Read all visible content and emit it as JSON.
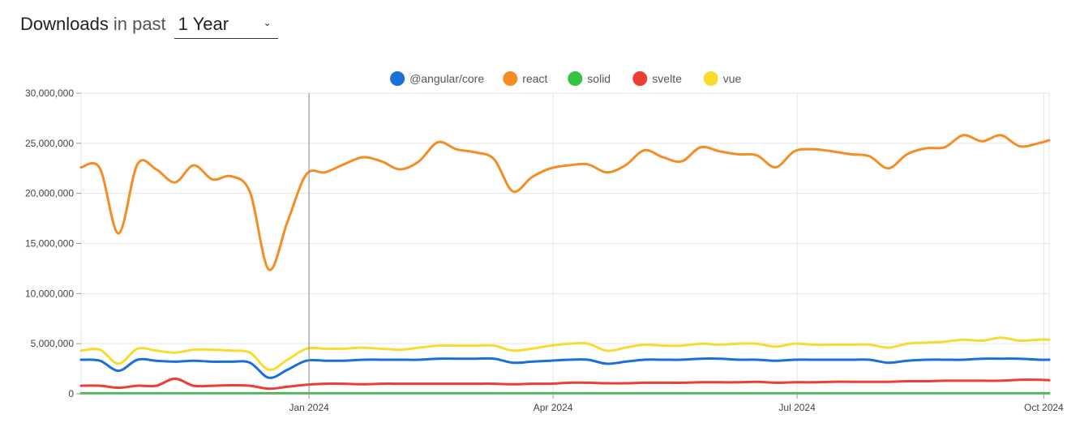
{
  "header": {
    "title_strong": "Downloads",
    "title_light": "in past",
    "range_selected": "1 Year",
    "caret": "⌄"
  },
  "chart_data": {
    "type": "line",
    "x_tick_labels": [
      "Jan 2024",
      "Apr 2024",
      "Jul 2024",
      "Oct 2024"
    ],
    "x_tick_dates": [
      "2024-01-01",
      "2024-04-01",
      "2024-07-01",
      "2024-10-01"
    ],
    "x_range": [
      "2023-10-08",
      "2024-10-03"
    ],
    "y_tick_labels": [
      "0",
      "5,000,000",
      "10,000,000",
      "15,000,000",
      "20,000,000",
      "25,000,000",
      "30,000,000"
    ],
    "ylim": [
      0,
      30000000
    ],
    "grid": true,
    "legend_position": "top-center",
    "x": [
      "2023-10-08",
      "2023-10-15",
      "2023-10-22",
      "2023-10-29",
      "2023-11-05",
      "2023-11-12",
      "2023-11-19",
      "2023-11-26",
      "2023-12-03",
      "2023-12-10",
      "2023-12-17",
      "2023-12-24",
      "2023-12-31",
      "2024-01-07",
      "2024-01-14",
      "2024-01-21",
      "2024-01-28",
      "2024-02-04",
      "2024-02-11",
      "2024-02-18",
      "2024-02-25",
      "2024-03-03",
      "2024-03-10",
      "2024-03-17",
      "2024-03-24",
      "2024-03-31",
      "2024-04-07",
      "2024-04-14",
      "2024-04-21",
      "2024-04-28",
      "2024-05-05",
      "2024-05-12",
      "2024-05-19",
      "2024-05-26",
      "2024-06-02",
      "2024-06-09",
      "2024-06-16",
      "2024-06-23",
      "2024-06-30",
      "2024-07-07",
      "2024-07-14",
      "2024-07-21",
      "2024-07-28",
      "2024-08-04",
      "2024-08-11",
      "2024-08-18",
      "2024-08-25",
      "2024-09-01",
      "2024-09-08",
      "2024-09-15",
      "2024-09-22",
      "2024-09-29",
      "2024-10-03"
    ],
    "series": [
      {
        "name": "@angular/core",
        "color": "#1a6fd8",
        "values": [
          3400000,
          3300000,
          2300000,
          3400000,
          3300000,
          3200000,
          3300000,
          3200000,
          3200000,
          3100000,
          1600000,
          2400000,
          3300000,
          3300000,
          3300000,
          3400000,
          3400000,
          3400000,
          3400000,
          3500000,
          3500000,
          3500000,
          3500000,
          3100000,
          3200000,
          3300000,
          3400000,
          3400000,
          3000000,
          3200000,
          3400000,
          3400000,
          3400000,
          3500000,
          3500000,
          3400000,
          3400000,
          3300000,
          3400000,
          3400000,
          3400000,
          3400000,
          3400000,
          3100000,
          3300000,
          3400000,
          3400000,
          3400000,
          3500000,
          3500000,
          3500000,
          3400000,
          3400000
        ]
      },
      {
        "name": "react",
        "color": "#f58d24",
        "values": [
          22600000,
          22500000,
          16000000,
          22900000,
          22400000,
          21100000,
          22800000,
          21400000,
          21700000,
          20100000,
          12400000,
          17200000,
          21900000,
          22100000,
          22900000,
          23600000,
          23200000,
          22400000,
          23200000,
          25100000,
          24400000,
          24100000,
          23400000,
          20200000,
          21600000,
          22500000,
          22800000,
          22900000,
          22100000,
          22800000,
          24300000,
          23600000,
          23200000,
          24600000,
          24200000,
          23900000,
          23800000,
          22600000,
          24200000,
          24400000,
          24200000,
          23900000,
          23700000,
          22500000,
          23900000,
          24500000,
          24600000,
          25800000,
          25200000,
          25800000,
          24700000,
          25000000,
          25300000
        ]
      },
      {
        "name": "solid",
        "color": "#36c440",
        "values": [
          50000,
          50000,
          50000,
          50000,
          50000,
          50000,
          50000,
          50000,
          50000,
          50000,
          50000,
          50000,
          50000,
          50000,
          50000,
          50000,
          50000,
          50000,
          50000,
          50000,
          50000,
          50000,
          50000,
          50000,
          50000,
          50000,
          50000,
          50000,
          50000,
          50000,
          50000,
          50000,
          50000,
          50000,
          50000,
          50000,
          50000,
          50000,
          50000,
          50000,
          50000,
          50000,
          50000,
          50000,
          50000,
          50000,
          50000,
          50000,
          50000,
          50000,
          50000,
          50000,
          50000
        ]
      },
      {
        "name": "svelte",
        "color": "#ee3d34",
        "values": [
          800000,
          800000,
          600000,
          800000,
          800000,
          1500000,
          800000,
          800000,
          850000,
          800000,
          500000,
          700000,
          900000,
          1000000,
          1000000,
          950000,
          1000000,
          1000000,
          1000000,
          1000000,
          1000000,
          1000000,
          1000000,
          950000,
          1000000,
          1000000,
          1100000,
          1100000,
          1050000,
          1050000,
          1100000,
          1100000,
          1100000,
          1150000,
          1150000,
          1150000,
          1200000,
          1100000,
          1150000,
          1150000,
          1200000,
          1200000,
          1200000,
          1200000,
          1250000,
          1250000,
          1300000,
          1300000,
          1300000,
          1300000,
          1400000,
          1400000,
          1350000
        ]
      },
      {
        "name": "vue",
        "color": "#f7dc2f",
        "values": [
          4300000,
          4400000,
          3000000,
          4500000,
          4300000,
          4100000,
          4400000,
          4400000,
          4300000,
          4100000,
          2400000,
          3400000,
          4500000,
          4500000,
          4500000,
          4600000,
          4500000,
          4400000,
          4600000,
          4800000,
          4800000,
          4800000,
          4800000,
          4300000,
          4500000,
          4800000,
          5000000,
          5000000,
          4300000,
          4600000,
          4900000,
          4800000,
          4800000,
          5000000,
          4900000,
          5000000,
          5000000,
          4700000,
          5000000,
          4900000,
          4900000,
          4900000,
          4900000,
          4600000,
          5000000,
          5100000,
          5200000,
          5400000,
          5300000,
          5600000,
          5300000,
          5400000,
          5400000
        ]
      }
    ]
  }
}
